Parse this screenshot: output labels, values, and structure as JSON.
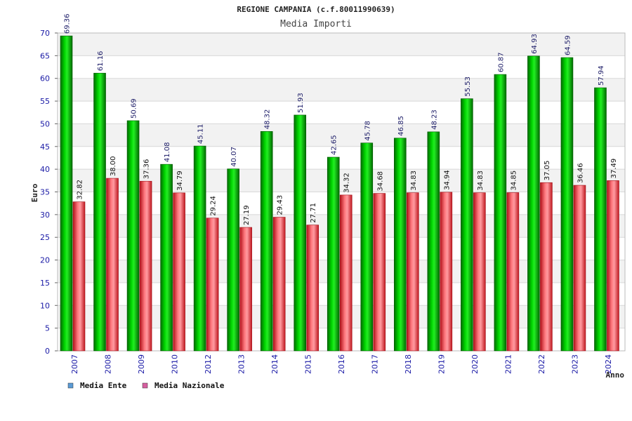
{
  "chart_data": {
    "type": "bar",
    "title": "REGIONE CAMPANIA (c.f.80011990639)",
    "subtitle": "Media Importi",
    "xlabel": "Anno",
    "ylabel": "Euro",
    "ylim": [
      0,
      70
    ],
    "ytick_step": 5,
    "grid": true,
    "legend_position": "bottom-left",
    "categories": [
      "2007",
      "2008",
      "2009",
      "2010",
      "2012",
      "2013",
      "2014",
      "2015",
      "2016",
      "2017",
      "2018",
      "2019",
      "2020",
      "2021",
      "2022",
      "2023",
      "2024"
    ],
    "series": [
      {
        "name": "Media Ente",
        "color": "#00aa00",
        "legend_color": "#5b9bd5",
        "values": [
          69.36,
          61.16,
          50.69,
          41.08,
          45.11,
          40.07,
          48.32,
          51.93,
          42.65,
          45.78,
          46.85,
          48.23,
          55.53,
          60.87,
          64.93,
          64.59,
          57.94
        ],
        "labels": [
          "69.36",
          "61.16",
          "50.69",
          "41.08",
          "45.11",
          "40.07",
          "48.32",
          "51.93",
          "42.65",
          "45.78",
          "46.85",
          "48.23",
          "55.53",
          "60.87",
          "64.93",
          "64.59",
          "57.94"
        ]
      },
      {
        "name": "Media Nazionale",
        "color": "#e8303a",
        "legend_color": "#d65fa0",
        "values": [
          32.82,
          38.0,
          37.36,
          34.79,
          29.24,
          27.19,
          29.43,
          27.71,
          34.32,
          34.68,
          34.83,
          34.94,
          34.83,
          34.85,
          37.05,
          36.46,
          37.49
        ],
        "labels": [
          "32.82",
          "38.00",
          "37.36",
          "34.79",
          "29.24",
          "27.19",
          "29.43",
          "27.71",
          "34.32",
          "34.68",
          "34.83",
          "34.94",
          "34.83",
          "34.85",
          "37.05",
          "36.46",
          "37.49"
        ]
      }
    ]
  }
}
